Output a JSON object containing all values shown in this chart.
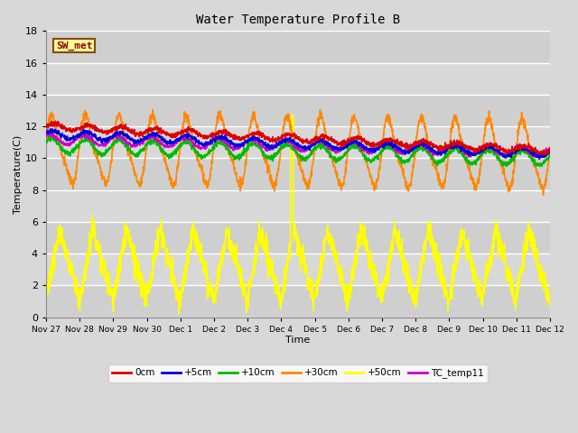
{
  "title": "Water Temperature Profile B",
  "xlabel": "Time",
  "ylabel": "Temperature(C)",
  "ylim": [
    0,
    18
  ],
  "yticks": [
    0,
    2,
    4,
    6,
    8,
    10,
    12,
    14,
    16,
    18
  ],
  "background_color": "#d8d8d8",
  "plot_bg_color": "#d8d8d8",
  "grid_color": "#ffffff",
  "series": {
    "0cm": {
      "color": "#dd0000",
      "lw": 1.2
    },
    "+5cm": {
      "color": "#0000dd",
      "lw": 1.2
    },
    "+10cm": {
      "color": "#00bb00",
      "lw": 1.2
    },
    "+30cm": {
      "color": "#ff8800",
      "lw": 1.2
    },
    "+50cm": {
      "color": "#ffff00",
      "lw": 1.2
    },
    "TC_temp11": {
      "color": "#cc00cc",
      "lw": 1.2
    }
  },
  "annotation": {
    "text": "SW_met",
    "color": "#8b0000",
    "fontsize": 8,
    "box_facecolor": "#ffff99",
    "box_edgecolor": "#8b4513"
  },
  "tick_labels": [
    "Nov 27",
    "Nov 28",
    "Nov 29",
    "Nov 30",
    "Dec 1",
    "Dec 2",
    "Dec 3",
    "Dec 4",
    "Dec 5",
    "Dec 6",
    "Dec 7",
    "Dec 8",
    "Dec 9",
    "Dec 10",
    "Dec 11",
    "Dec 12"
  ]
}
